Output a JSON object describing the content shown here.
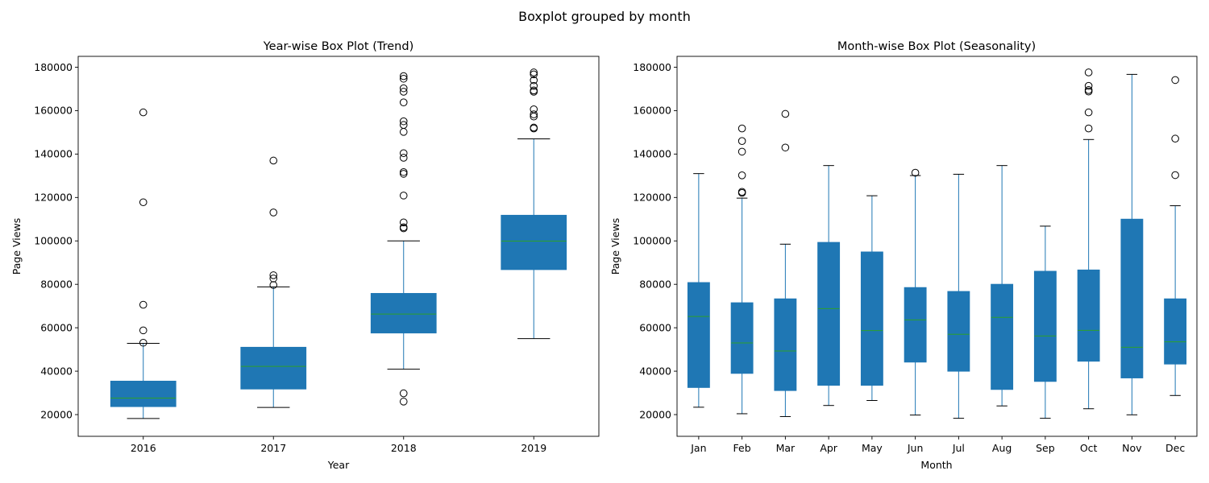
{
  "figure": {
    "suptitle": "Boxplot grouped by month"
  },
  "colors": {
    "box_fill": "#1f77b4",
    "median": "#2ca02c",
    "whisker": "#1f77b4",
    "cap": "#000000",
    "flier_edge": "#000000",
    "axis": "#000000",
    "background": "#ffffff"
  },
  "chart_data": [
    {
      "type": "box",
      "title": "Year-wise Box Plot (Trend)",
      "xlabel": "Year",
      "ylabel": "Page Views",
      "ylim": [
        10000,
        185000
      ],
      "yticks": [
        20000,
        40000,
        60000,
        80000,
        100000,
        120000,
        140000,
        160000,
        180000
      ],
      "ytick_labels": [
        "20000",
        "40000",
        "60000",
        "80000",
        "100000",
        "120000",
        "140000",
        "160000",
        "180000"
      ],
      "categories": [
        "2016",
        "2017",
        "2018",
        "2019"
      ],
      "boxes": [
        {
          "whislo": 18200,
          "q1": 23700,
          "med": 27600,
          "q3": 35400,
          "whishi": 52800,
          "fliers": [
            53100,
            58800,
            70600,
            117800,
            159200
          ]
        },
        {
          "whislo": 23300,
          "q1": 31800,
          "med": 42200,
          "q3": 51000,
          "whishi": 78800,
          "fliers": [
            79700,
            82700,
            84200,
            113100,
            137000
          ]
        },
        {
          "whislo": 40900,
          "q1": 57600,
          "med": 66300,
          "q3": 75800,
          "whishi": 100000,
          "fliers": [
            26000,
            29800,
            105800,
            106300,
            108500,
            120900,
            130900,
            131700,
            138300,
            140400,
            150200,
            153400,
            155100,
            163800,
            168700,
            170300,
            174700,
            175900
          ]
        },
        {
          "whislo": 55000,
          "q1": 86800,
          "med": 99900,
          "q3": 111800,
          "whishi": 147000,
          "fliers": [
            151800,
            152200,
            157300,
            158300,
            160600,
            168700,
            169300,
            171400,
            174000,
            176700,
            177600
          ]
        }
      ]
    },
    {
      "type": "box",
      "title": "Month-wise Box Plot (Seasonality)",
      "xlabel": "Month",
      "ylabel": "Page Views",
      "ylim": [
        10000,
        185000
      ],
      "yticks": [
        20000,
        40000,
        60000,
        80000,
        100000,
        120000,
        140000,
        160000,
        180000
      ],
      "ytick_labels": [
        "20000",
        "40000",
        "60000",
        "80000",
        "100000",
        "120000",
        "140000",
        "160000",
        "180000"
      ],
      "categories": [
        "Jan",
        "Feb",
        "Mar",
        "Apr",
        "May",
        "Jun",
        "Jul",
        "Aug",
        "Sep",
        "Oct",
        "Nov",
        "Dec"
      ],
      "boxes": [
        {
          "whislo": 23400,
          "q1": 32500,
          "med": 65200,
          "q3": 80800,
          "whishi": 131000,
          "fliers": []
        },
        {
          "whislo": 20400,
          "q1": 39000,
          "med": 53000,
          "q3": 71500,
          "whishi": 119700,
          "fliers": [
            122100,
            122600,
            130200,
            141100,
            146000,
            151800
          ]
        },
        {
          "whislo": 19100,
          "q1": 31100,
          "med": 49300,
          "q3": 73300,
          "whishi": 98500,
          "fliers": [
            143000,
            158500
          ]
        },
        {
          "whislo": 24200,
          "q1": 33500,
          "med": 68800,
          "q3": 99300,
          "whishi": 134700,
          "fliers": []
        },
        {
          "whislo": 26500,
          "q1": 33500,
          "med": 58700,
          "q3": 94900,
          "whishi": 120800,
          "fliers": []
        },
        {
          "whislo": 19800,
          "q1": 44200,
          "med": 63600,
          "q3": 78500,
          "whishi": 130100,
          "fliers": [
            131400
          ]
        },
        {
          "whislo": 18300,
          "q1": 40000,
          "med": 57000,
          "q3": 76700,
          "whishi": 130700,
          "fliers": []
        },
        {
          "whislo": 24000,
          "q1": 31600,
          "med": 64800,
          "q3": 80000,
          "whishi": 134700,
          "fliers": []
        },
        {
          "whislo": 18300,
          "q1": 35300,
          "med": 56200,
          "q3": 86000,
          "whishi": 106800,
          "fliers": []
        },
        {
          "whislo": 22700,
          "q1": 44600,
          "med": 58800,
          "q3": 86600,
          "whishi": 146700,
          "fliers": [
            151800,
            159200,
            168800,
            169500,
            171400,
            177600
          ]
        },
        {
          "whislo": 19900,
          "q1": 36900,
          "med": 51000,
          "q3": 110000,
          "whishi": 176700,
          "fliers": []
        },
        {
          "whislo": 28800,
          "q1": 43300,
          "med": 53500,
          "q3": 73300,
          "whishi": 116200,
          "fliers": [
            130300,
            147100,
            174100
          ]
        }
      ]
    }
  ]
}
